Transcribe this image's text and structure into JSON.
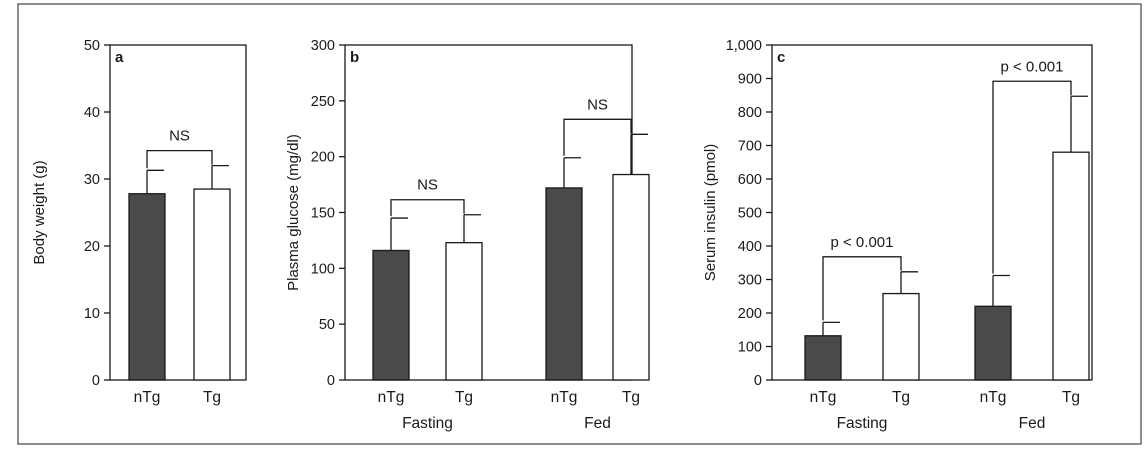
{
  "chart_data": [
    {
      "panel": "a",
      "type": "bar",
      "ylabel": "Body weight (g)",
      "ylim": [
        0,
        50
      ],
      "yticks": [
        0,
        10,
        20,
        30,
        40,
        50
      ],
      "groups": [
        {
          "label": "",
          "bars": [
            {
              "label": "nTg",
              "value": 27.8,
              "error": 3.5,
              "fill": "#4a4a4a"
            },
            {
              "label": "Tg",
              "value": 28.5,
              "error": 3.5,
              "fill": "#ffffff"
            }
          ],
          "comparison": "NS"
        }
      ]
    },
    {
      "panel": "b",
      "type": "bar",
      "ylabel": "Plasma glucose (mg/dl)",
      "ylim": [
        0,
        300
      ],
      "yticks": [
        0,
        50,
        100,
        150,
        200,
        250,
        300
      ],
      "groups": [
        {
          "label": "Fasting",
          "bars": [
            {
              "label": "nTg",
              "value": 116,
              "error": 29,
              "fill": "#4a4a4a"
            },
            {
              "label": "Tg",
              "value": 123,
              "error": 25,
              "fill": "#ffffff"
            }
          ],
          "comparison": "NS"
        },
        {
          "label": "Fed",
          "bars": [
            {
              "label": "nTg",
              "value": 172,
              "error": 27,
              "fill": "#4a4a4a"
            },
            {
              "label": "Tg",
              "value": 184,
              "error": 36,
              "fill": "#ffffff"
            }
          ],
          "comparison": "NS"
        }
      ]
    },
    {
      "panel": "c",
      "type": "bar",
      "ylabel": "Serum insulin (pmol)",
      "ylim": [
        0,
        1000
      ],
      "yticks": [
        0,
        100,
        200,
        300,
        400,
        500,
        600,
        700,
        800,
        900,
        1000
      ],
      "ytick_labels": [
        "0",
        "100",
        "200",
        "300",
        "400",
        "500",
        "600",
        "700",
        "800",
        "900",
        "1,000"
      ],
      "groups": [
        {
          "label": "Fasting",
          "bars": [
            {
              "label": "nTg",
              "value": 132,
              "error": 40,
              "fill": "#4a4a4a"
            },
            {
              "label": "Tg",
              "value": 258,
              "error": 65,
              "fill": "#ffffff"
            }
          ],
          "comparison": "p < 0.001"
        },
        {
          "label": "Fed",
          "bars": [
            {
              "label": "nTg",
              "value": 220,
              "error": 92,
              "fill": "#4a4a4a"
            },
            {
              "label": "Tg",
              "value": 680,
              "error": 167,
              "fill": "#ffffff"
            }
          ],
          "comparison": "p < 0.001"
        }
      ]
    }
  ]
}
